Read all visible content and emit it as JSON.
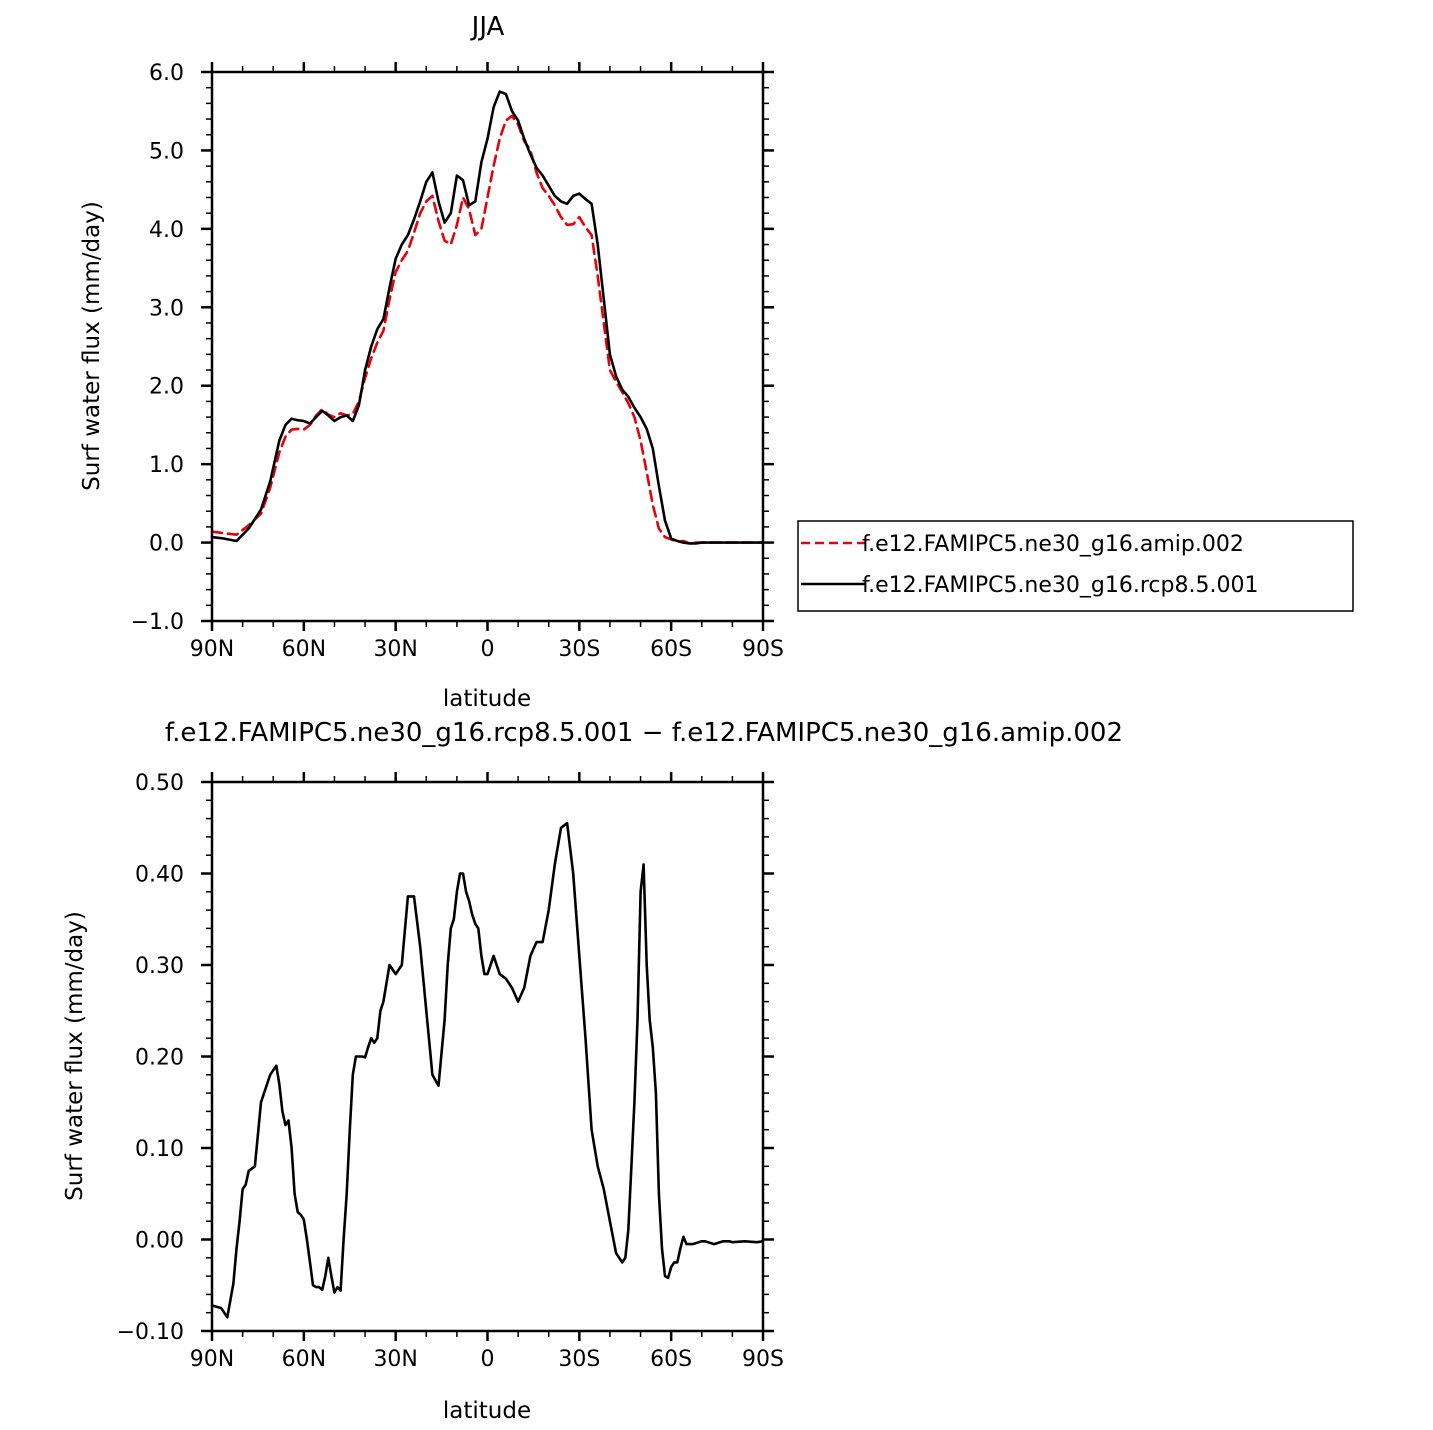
{
  "chart_data": [
    {
      "type": "line",
      "title": "JJA",
      "xlabel": "latitude",
      "ylabel": "Surf water flux (mm/day)",
      "xlim": [
        90,
        -90
      ],
      "ylim": [
        -1.0,
        6.0
      ],
      "x_tick_values": [
        90,
        60,
        30,
        0,
        -30,
        -60,
        -90
      ],
      "x_tick_labels": [
        "90N",
        "60N",
        "30N",
        "0",
        "30S",
        "60S",
        "90S"
      ],
      "y_tick_values": [
        -1.0,
        0.0,
        1.0,
        2.0,
        3.0,
        4.0,
        5.0,
        6.0
      ],
      "y_tick_labels": [
        "−1.0",
        "0.0",
        "1.0",
        "2.0",
        "3.0",
        "4.0",
        "5.0",
        "6.0"
      ],
      "legend_position": "right",
      "series": [
        {
          "name": "f.e12.FAMIPC5.ne30_g16.amip.002",
          "color": "#e8000b",
          "dash": "dashed",
          "x": [
            90,
            86,
            82,
            78,
            74,
            71,
            68,
            66,
            64,
            62,
            60,
            58,
            56,
            54,
            52,
            50,
            48,
            46,
            44,
            42,
            40,
            38,
            36,
            34,
            32,
            30,
            28,
            26,
            24,
            22,
            20,
            18,
            16,
            14,
            12,
            10,
            8,
            6,
            4,
            2,
            0,
            -2,
            -4,
            -6,
            -8,
            -10,
            -12,
            -14,
            -16,
            -18,
            -20,
            -22,
            -24,
            -26,
            -28,
            -30,
            -32,
            -34,
            -36,
            -38,
            -40,
            -42,
            -44,
            -46,
            -48,
            -50,
            -52,
            -54,
            -56,
            -58,
            -60,
            -62,
            -64,
            -66,
            -68,
            -70,
            -72,
            -74,
            -76,
            -78,
            -80,
            -84,
            -90
          ],
          "y": [
            0.14,
            0.12,
            0.1,
            0.22,
            0.37,
            0.7,
            1.15,
            1.35,
            1.44,
            1.45,
            1.44,
            1.5,
            1.62,
            1.7,
            1.63,
            1.6,
            1.65,
            1.62,
            1.64,
            1.8,
            2.1,
            2.35,
            2.55,
            2.7,
            3.1,
            3.45,
            3.6,
            3.72,
            3.95,
            4.2,
            4.35,
            4.42,
            4.1,
            3.85,
            3.8,
            4.05,
            4.4,
            4.25,
            3.92,
            4.0,
            4.4,
            4.8,
            5.15,
            5.38,
            5.44,
            5.33,
            5.12,
            5.0,
            4.72,
            4.52,
            4.42,
            4.3,
            4.15,
            4.05,
            4.06,
            4.15,
            4.02,
            3.92,
            3.4,
            2.8,
            2.2,
            2.05,
            1.92,
            1.78,
            1.6,
            1.3,
            0.9,
            0.48,
            0.18,
            0.07,
            0.04,
            0.01,
            0.02,
            -0.01,
            0.0,
            0.0,
            0.0,
            0.0,
            0.0,
            0.0,
            0.0,
            0.0,
            0.0
          ]
        },
        {
          "name": "f.e12.FAMIPC5.ne30_g16.rcp8.5.001",
          "color": "#000000",
          "dash": "solid",
          "x": [
            90,
            86,
            82,
            78,
            74,
            71,
            68,
            66,
            64,
            62,
            60,
            58,
            56,
            54,
            52,
            50,
            48,
            46,
            44,
            42,
            40,
            38,
            36,
            34,
            32,
            30,
            28,
            26,
            24,
            22,
            20,
            18,
            16,
            14,
            12,
            10,
            8,
            6,
            4,
            2,
            0,
            -2,
            -4,
            -6,
            -8,
            -10,
            -12,
            -14,
            -16,
            -18,
            -20,
            -22,
            -24,
            -26,
            -28,
            -30,
            -32,
            -34,
            -36,
            -38,
            -40,
            -42,
            -44,
            -46,
            -48,
            -50,
            -52,
            -54,
            -56,
            -58,
            -60,
            -62,
            -64,
            -66,
            -68,
            -70,
            -72,
            -74,
            -76,
            -78,
            -80,
            -84,
            -90
          ],
          "y": [
            0.07,
            0.05,
            0.02,
            0.18,
            0.42,
            0.78,
            1.3,
            1.5,
            1.58,
            1.56,
            1.55,
            1.52,
            1.6,
            1.68,
            1.62,
            1.55,
            1.6,
            1.62,
            1.55,
            1.75,
            2.2,
            2.5,
            2.72,
            2.85,
            3.25,
            3.62,
            3.8,
            3.92,
            4.12,
            4.35,
            4.6,
            4.72,
            4.35,
            4.08,
            4.2,
            4.68,
            4.62,
            4.3,
            4.35,
            4.85,
            5.15,
            5.55,
            5.75,
            5.72,
            5.5,
            5.38,
            5.15,
            4.95,
            4.78,
            4.68,
            4.55,
            4.42,
            4.35,
            4.32,
            4.42,
            4.45,
            4.38,
            4.32,
            3.8,
            3.1,
            2.4,
            2.12,
            1.95,
            1.86,
            1.72,
            1.6,
            1.45,
            1.2,
            0.72,
            0.28,
            0.05,
            0.02,
            0.0,
            -0.01,
            -0.01,
            0.0,
            0.0,
            0.0,
            0.0,
            0.0,
            0.0,
            0.0,
            0.0
          ]
        }
      ]
    },
    {
      "type": "line",
      "title": "f.e12.FAMIPC5.ne30_g16.rcp8.5.001 − f.e12.FAMIPC5.ne30_g16.amip.002",
      "xlabel": "latitude",
      "ylabel": "Surf water flux (mm/day)",
      "xlim": [
        90,
        -90
      ],
      "ylim": [
        -0.1,
        0.5
      ],
      "x_tick_values": [
        90,
        60,
        30,
        0,
        -30,
        -60,
        -90
      ],
      "x_tick_labels": [
        "90N",
        "60N",
        "30N",
        "0",
        "30S",
        "60S",
        "90S"
      ],
      "y_tick_values": [
        -0.1,
        0.0,
        0.1,
        0.2,
        0.3,
        0.4,
        0.5
      ],
      "y_tick_labels": [
        "−0.10",
        "0.00",
        "0.10",
        "0.20",
        "0.30",
        "0.40",
        "0.50"
      ],
      "series": [
        {
          "color": "#000000",
          "dash": "solid",
          "x": [
            90,
            87,
            85,
            83,
            82,
            81,
            80,
            79,
            78,
            76,
            74,
            72,
            71,
            69,
            68,
            67,
            66,
            65,
            64,
            63,
            62,
            61,
            60,
            59,
            58,
            57,
            56,
            55,
            54,
            53,
            52,
            51,
            50,
            49,
            48,
            47,
            46,
            45,
            44,
            43,
            42,
            41,
            40,
            39,
            38,
            37,
            36,
            35,
            34,
            32,
            30,
            28,
            26,
            24,
            22,
            20,
            18,
            16,
            14,
            13,
            12,
            11,
            10,
            9,
            8,
            7,
            6,
            5,
            4,
            3,
            2,
            1,
            0,
            -2,
            -4,
            -6,
            -8,
            -10,
            -12,
            -14,
            -16,
            -18,
            -20,
            -22,
            -24,
            -26,
            -28,
            -30,
            -32,
            -34,
            -36,
            -38,
            -40,
            -42,
            -44,
            -45,
            -46,
            -47,
            -48,
            -49,
            -50,
            -51,
            -52,
            -53,
            -54,
            -55,
            -56,
            -57,
            -58,
            -59,
            -60,
            -61,
            -62,
            -63,
            -64,
            -65,
            -66,
            -67,
            -68,
            -69,
            -70,
            -71,
            -72,
            -73,
            -74,
            -75,
            -76,
            -77,
            -78,
            -79,
            -80,
            -84,
            -88,
            -90
          ],
          "y": [
            -0.072,
            -0.075,
            -0.085,
            -0.048,
            -0.01,
            0.02,
            0.055,
            0.06,
            0.075,
            0.08,
            0.15,
            0.17,
            0.18,
            0.19,
            0.17,
            0.14,
            0.125,
            0.13,
            0.1,
            0.05,
            0.03,
            0.027,
            0.022,
            0.0,
            -0.025,
            -0.05,
            -0.052,
            -0.052,
            -0.055,
            -0.04,
            -0.02,
            -0.04,
            -0.058,
            -0.052,
            -0.056,
            0.0,
            0.05,
            0.12,
            0.18,
            0.2,
            0.2,
            0.2,
            0.199,
            0.21,
            0.22,
            0.215,
            0.22,
            0.25,
            0.26,
            0.3,
            0.29,
            0.3,
            0.375,
            0.375,
            0.32,
            0.25,
            0.18,
            0.168,
            0.24,
            0.3,
            0.34,
            0.35,
            0.38,
            0.4,
            0.4,
            0.38,
            0.37,
            0.355,
            0.345,
            0.34,
            0.31,
            0.29,
            0.29,
            0.31,
            0.29,
            0.285,
            0.275,
            0.26,
            0.275,
            0.31,
            0.325,
            0.325,
            0.36,
            0.41,
            0.45,
            0.455,
            0.4,
            0.31,
            0.22,
            0.12,
            0.08,
            0.055,
            0.02,
            -0.015,
            -0.025,
            -0.02,
            0.01,
            0.08,
            0.15,
            0.24,
            0.38,
            0.41,
            0.3,
            0.24,
            0.21,
            0.16,
            0.05,
            -0.01,
            -0.04,
            -0.042,
            -0.03,
            -0.025,
            -0.025,
            -0.01,
            0.003,
            -0.005,
            -0.005,
            -0.005,
            -0.004,
            -0.003,
            -0.002,
            -0.002,
            -0.003,
            -0.004,
            -0.005,
            -0.004,
            -0.003,
            -0.002,
            -0.002,
            -0.002,
            -0.003,
            -0.002,
            -0.003,
            -0.002
          ]
        }
      ]
    }
  ]
}
